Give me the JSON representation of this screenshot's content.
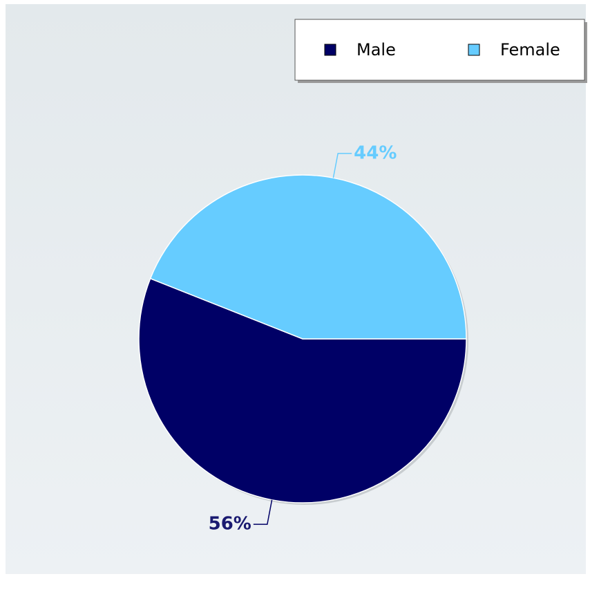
{
  "chart_data": {
    "type": "pie",
    "categories": [
      "Male",
      "Female"
    ],
    "values": [
      56,
      44
    ],
    "value_labels": [
      "56%",
      "44%"
    ],
    "colors": [
      "#000066",
      "#66ccff"
    ],
    "legend": "top-right"
  }
}
